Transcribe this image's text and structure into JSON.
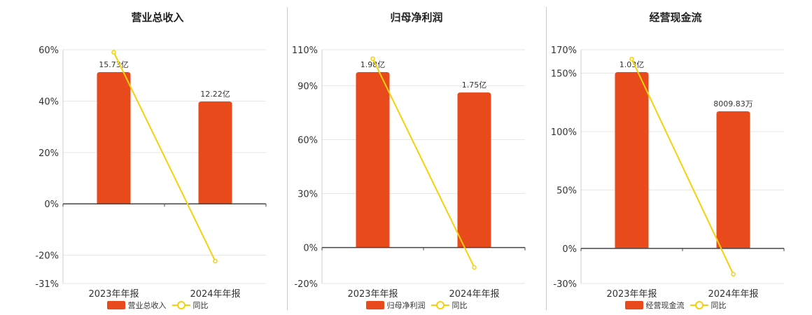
{
  "colors": {
    "bar": "#E84A1B",
    "line": "#F5D10B",
    "grid": "#e6e6e6",
    "axis": "#444444"
  },
  "chart_data": [
    {
      "type": "bar",
      "title": "营业总收入",
      "categories": [
        "2023年年报",
        "2024年年报"
      ],
      "bar_values": [
        15.73,
        12.22
      ],
      "bar_labels": [
        "15.73亿",
        "12.22亿"
      ],
      "ylim": [
        -31,
        60
      ],
      "ticks": [
        60,
        40,
        20,
        0,
        -20,
        -31
      ],
      "tick_labels": [
        "60%",
        "40%",
        "20%",
        "0%",
        "-20%",
        "-31%"
      ],
      "series": [
        {
          "name": "营业总收入",
          "type": "bar",
          "values": [
            15.73,
            12.22
          ]
        },
        {
          "name": "同比",
          "type": "line",
          "values": [
            59,
            -22.3
          ]
        }
      ],
      "legend": {
        "bar": "营业总收入",
        "line": "同比"
      }
    },
    {
      "type": "bar",
      "title": "归母净利润",
      "categories": [
        "2023年年报",
        "2024年年报"
      ],
      "bar_values": [
        1.98,
        1.75
      ],
      "bar_labels": [
        "1.98亿",
        "1.75亿"
      ],
      "ylim": [
        -20,
        110
      ],
      "ticks": [
        110,
        90,
        60,
        30,
        0,
        -20
      ],
      "tick_labels": [
        "110%",
        "90%",
        "60%",
        "30%",
        "0%",
        "-20%"
      ],
      "series": [
        {
          "name": "归母净利润",
          "type": "bar",
          "values": [
            1.98,
            1.75
          ]
        },
        {
          "name": "同比",
          "type": "line",
          "values": [
            105,
            -11
          ]
        }
      ],
      "legend": {
        "bar": "归母净利润",
        "line": "同比"
      }
    },
    {
      "type": "bar",
      "title": "经营现金流",
      "categories": [
        "2023年年报",
        "2024年年报"
      ],
      "bar_values": [
        1.03,
        0.800983
      ],
      "bar_labels": [
        "1.03亿",
        "8009.83万"
      ],
      "ylim": [
        -30,
        170
      ],
      "ticks": [
        170,
        150,
        100,
        50,
        0,
        -30
      ],
      "tick_labels": [
        "170%",
        "150%",
        "100%",
        "50%",
        "0%",
        "-30%"
      ],
      "series": [
        {
          "name": "经营现金流",
          "type": "bar",
          "values": [
            1.03,
            0.800983
          ]
        },
        {
          "name": "同比",
          "type": "line",
          "values": [
            162,
            -22
          ]
        }
      ],
      "legend": {
        "bar": "经营现金流",
        "line": "同比"
      }
    }
  ]
}
